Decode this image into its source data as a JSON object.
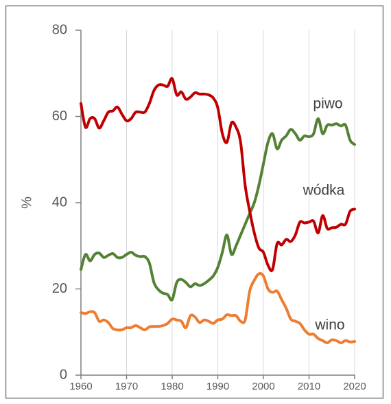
{
  "chart_data": {
    "type": "line",
    "ylabel": "%",
    "x": [
      1960,
      1961,
      1962,
      1963,
      1964,
      1965,
      1966,
      1967,
      1968,
      1969,
      1970,
      1971,
      1972,
      1973,
      1974,
      1975,
      1976,
      1977,
      1978,
      1979,
      1980,
      1981,
      1982,
      1983,
      1984,
      1985,
      1986,
      1987,
      1988,
      1989,
      1990,
      1991,
      1992,
      1993,
      1994,
      1995,
      1996,
      1997,
      1998,
      1999,
      2000,
      2001,
      2002,
      2003,
      2004,
      2005,
      2006,
      2007,
      2008,
      2009,
      2010,
      2011,
      2012,
      2013,
      2014,
      2015,
      2016,
      2017,
      2018,
      2019,
      2020
    ],
    "series": [
      {
        "name": "piwo",
        "color": "#548235",
        "values": [
          24.5,
          28,
          26.5,
          28,
          28.3,
          27.3,
          27.8,
          28.2,
          27.3,
          27.3,
          28,
          28.5,
          27.8,
          27.5,
          27.5,
          26,
          21.5,
          19.8,
          19,
          18.7,
          17.5,
          21.5,
          22.2,
          21.5,
          20.5,
          21.2,
          20.8,
          21.2,
          22,
          23,
          25,
          28.5,
          32.5,
          28,
          30,
          32.5,
          35,
          37.5,
          40,
          44,
          49,
          54,
          56,
          52.5,
          54.5,
          55.5,
          57,
          56,
          54.5,
          55.5,
          55.3,
          56,
          59.5,
          56,
          58,
          58,
          58.3,
          57.8,
          58,
          54.5,
          53.5
        ]
      },
      {
        "name": "wódka",
        "color": "#c00000",
        "values": [
          63,
          57.5,
          59.5,
          59.5,
          57.3,
          59,
          61,
          61.3,
          62.2,
          60.5,
          59,
          59.5,
          61,
          61,
          61,
          63,
          66,
          67.3,
          67.3,
          67,
          68.8,
          65,
          65.7,
          64,
          64.5,
          65.5,
          65.2,
          65.2,
          65,
          64.3,
          62,
          56,
          54,
          58.5,
          57.5,
          54,
          44,
          38,
          33,
          29.5,
          28.5,
          25.5,
          24.5,
          30.5,
          30.2,
          31.5,
          31,
          32.5,
          35.5,
          35.3,
          35.5,
          35.7,
          33,
          37,
          34,
          34.2,
          34.3,
          35,
          35,
          38,
          38.5
        ]
      },
      {
        "name": "wino",
        "color": "#ed7d31",
        "values": [
          14.5,
          14.3,
          14.7,
          14.5,
          12.5,
          12.8,
          12.2,
          10.8,
          10.5,
          10.5,
          11,
          11,
          11.5,
          11,
          10.5,
          11.2,
          11.3,
          11.3,
          11.5,
          12,
          13,
          12.8,
          12.5,
          11,
          13.8,
          13.5,
          12.2,
          12.8,
          12.5,
          12,
          12.8,
          13,
          14,
          13.8,
          13.8,
          12.5,
          12.8,
          19.5,
          22,
          23.5,
          23,
          20,
          19.2,
          19.5,
          17.5,
          15.5,
          13,
          12.5,
          12,
          10.5,
          9.5,
          9.5,
          8.5,
          8,
          7.5,
          8.2,
          8,
          7.5,
          8,
          7.7,
          7.8
        ]
      }
    ],
    "xlim": [
      1960,
      2020
    ],
    "xticks": [
      1960,
      1970,
      1980,
      1990,
      2000,
      2010,
      2020
    ],
    "ylim": [
      0,
      80
    ],
    "yticks": [
      0,
      20,
      40,
      60,
      80
    ],
    "grid": true
  }
}
